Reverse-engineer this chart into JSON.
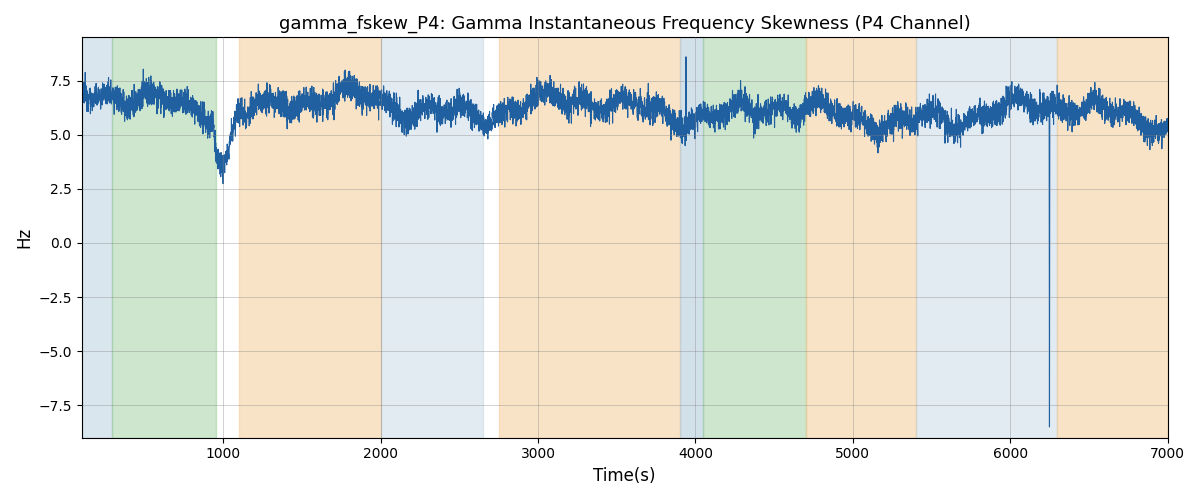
{
  "title": "gamma_fskew_P4: Gamma Instantaneous Frequency Skewness (P4 Channel)",
  "xlabel": "Time(s)",
  "ylabel": "Hz",
  "xlim": [
    100,
    7000
  ],
  "ylim": [
    -9.0,
    9.5
  ],
  "yticks": [
    -7.5,
    -5.0,
    -2.5,
    0.0,
    2.5,
    5.0,
    7.5
  ],
  "xticks": [
    1000,
    2000,
    3000,
    4000,
    5000,
    6000,
    7000
  ],
  "line_color": "#2060a0",
  "line_width": 0.8,
  "bg_regions": [
    {
      "xmin": 100,
      "xmax": 290,
      "color": "#aec8d8",
      "alpha": 0.45
    },
    {
      "xmin": 290,
      "xmax": 950,
      "color": "#90c890",
      "alpha": 0.45
    },
    {
      "xmin": 1100,
      "xmax": 2000,
      "color": "#f5c890",
      "alpha": 0.5
    },
    {
      "xmin": 2000,
      "xmax": 2650,
      "color": "#aec8d8",
      "alpha": 0.35
    },
    {
      "xmin": 2750,
      "xmax": 3900,
      "color": "#f5c890",
      "alpha": 0.5
    },
    {
      "xmin": 3900,
      "xmax": 4050,
      "color": "#aec8d8",
      "alpha": 0.55
    },
    {
      "xmin": 4050,
      "xmax": 4700,
      "color": "#90c890",
      "alpha": 0.45
    },
    {
      "xmin": 4700,
      "xmax": 5400,
      "color": "#f5c890",
      "alpha": 0.5
    },
    {
      "xmin": 5400,
      "xmax": 6300,
      "color": "#aec8d8",
      "alpha": 0.35
    },
    {
      "xmin": 6300,
      "xmax": 7000,
      "color": "#f5c890",
      "alpha": 0.5
    }
  ],
  "seed": 12345,
  "n_points": 6900
}
